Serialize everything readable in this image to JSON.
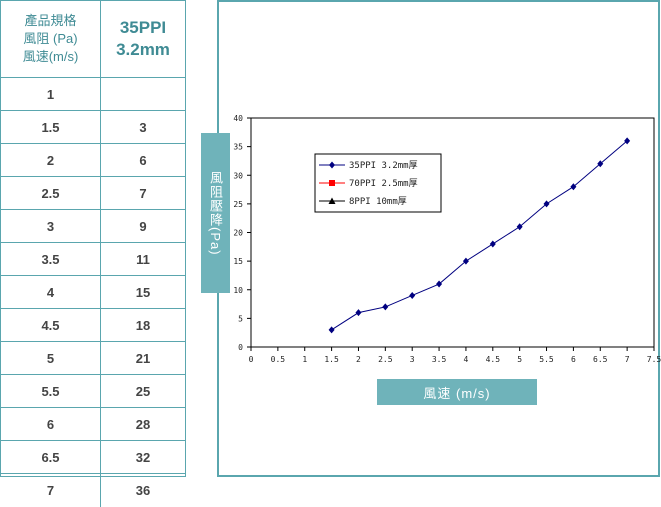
{
  "table": {
    "header": {
      "col1_line1": "產品規格",
      "col1_line2": "風阻 (Pa)",
      "col1_line3": "風速(m/s)",
      "col2_line1": "35PPI",
      "col2_line2": "3.2mm"
    },
    "rows": [
      {
        "speed": "1",
        "pressure": ""
      },
      {
        "speed": "1.5",
        "pressure": "3"
      },
      {
        "speed": "2",
        "pressure": "6"
      },
      {
        "speed": "2.5",
        "pressure": "7"
      },
      {
        "speed": "3",
        "pressure": "9"
      },
      {
        "speed": "3.5",
        "pressure": "11"
      },
      {
        "speed": "4",
        "pressure": "15"
      },
      {
        "speed": "4.5",
        "pressure": "18"
      },
      {
        "speed": "5",
        "pressure": "21"
      },
      {
        "speed": "5.5",
        "pressure": "25"
      },
      {
        "speed": "6",
        "pressure": "28"
      },
      {
        "speed": "6.5",
        "pressure": "32"
      },
      {
        "speed": "7",
        "pressure": "36"
      }
    ]
  },
  "chart_data": {
    "type": "line",
    "title": "",
    "xlabel": "風速 (m/s)",
    "ylabel": "風阻壓降(Pa)",
    "xlim": [
      0,
      7.5
    ],
    "ylim": [
      0,
      40
    ],
    "x_ticks": [
      "0",
      "0.5",
      "1",
      "1.5",
      "2",
      "2.5",
      "3",
      "3.5",
      "4",
      "4.5",
      "5",
      "5.5",
      "6",
      "6.5",
      "7",
      "7.5"
    ],
    "y_ticks": [
      "0",
      "5",
      "10",
      "15",
      "20",
      "25",
      "30",
      "35",
      "40"
    ],
    "grid": false,
    "legend_position": "top-left",
    "series": [
      {
        "name": "35PPI  3.2mm厚",
        "marker": "diamond",
        "color": "#000080",
        "x": [
          1.5,
          2,
          2.5,
          3,
          3.5,
          4,
          4.5,
          5,
          5.5,
          6,
          6.5,
          7
        ],
        "y": [
          3,
          6,
          7,
          9,
          11,
          15,
          18,
          21,
          25,
          28,
          32,
          36
        ]
      },
      {
        "name": "70PPI 2.5mm厚",
        "marker": "square",
        "color": "#ff0000",
        "x": [],
        "y": []
      },
      {
        "name": "8PPI   10mm厚",
        "marker": "triangle",
        "color": "#000000",
        "x": [],
        "y": []
      }
    ]
  }
}
